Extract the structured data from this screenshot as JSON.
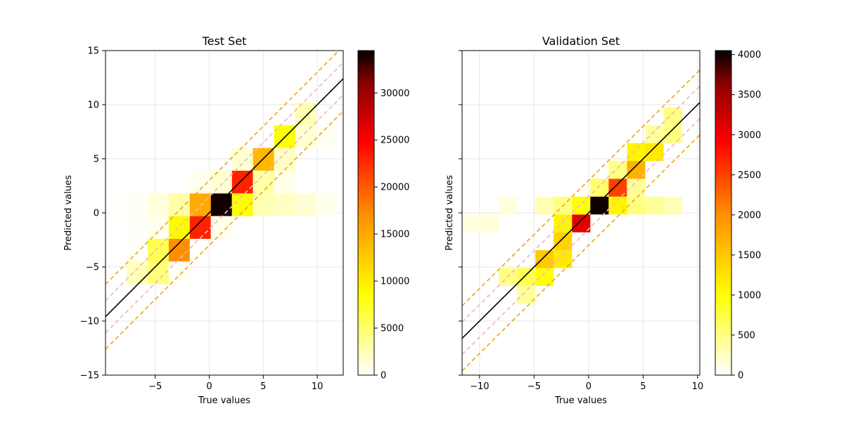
{
  "chart_data": [
    {
      "type": "heatmap",
      "title": "Test Set",
      "xlabel": "True values",
      "ylabel": "Predicted values",
      "xlim": [
        -9.6,
        12.4
      ],
      "ylim": [
        -15,
        15
      ],
      "x_ticks": [
        -5,
        0,
        5,
        10
      ],
      "y_ticks": [
        -15,
        -10,
        -5,
        0,
        5,
        10,
        15
      ],
      "grid": true,
      "bin_size": [
        1.95,
        2.1
      ],
      "x_bin_start": -9.6,
      "y_bin_start": -15,
      "bins": [
        {
          "x": -7.65,
          "y": -6.6,
          "v": 2500
        },
        {
          "x": -7.65,
          "y": -4.5,
          "v": 300
        },
        {
          "x": -7.65,
          "y": -0.3,
          "v": 300
        },
        {
          "x": -7.65,
          "y": -2.4,
          "v": 200
        },
        {
          "x": -9.6,
          "y": -0.3,
          "v": 150
        },
        {
          "x": -5.7,
          "y": -6.6,
          "v": 4500
        },
        {
          "x": -5.7,
          "y": -4.5,
          "v": 6000
        },
        {
          "x": -5.7,
          "y": -2.4,
          "v": 600
        },
        {
          "x": -5.7,
          "y": -0.3,
          "v": 1200
        },
        {
          "x": -3.75,
          "y": -4.5,
          "v": 17000
        },
        {
          "x": -3.75,
          "y": -2.4,
          "v": 9000
        },
        {
          "x": -3.75,
          "y": -0.3,
          "v": 3000
        },
        {
          "x": -3.75,
          "y": -6.6,
          "v": 400
        },
        {
          "x": -1.8,
          "y": -2.4,
          "v": 23000
        },
        {
          "x": -1.8,
          "y": -0.3,
          "v": 15000
        },
        {
          "x": -1.8,
          "y": 1.8,
          "v": 600
        },
        {
          "x": 0.15,
          "y": -0.3,
          "v": 34000
        },
        {
          "x": 0.15,
          "y": 1.8,
          "v": 1500
        },
        {
          "x": 0.15,
          "y": -2.4,
          "v": 600
        },
        {
          "x": 2.1,
          "y": -0.3,
          "v": 8500
        },
        {
          "x": 2.1,
          "y": 1.8,
          "v": 23000
        },
        {
          "x": 2.1,
          "y": 3.9,
          "v": 1500
        },
        {
          "x": 4.05,
          "y": 3.9,
          "v": 14000
        },
        {
          "x": 4.05,
          "y": 1.8,
          "v": 3000
        },
        {
          "x": 4.05,
          "y": -0.3,
          "v": 2500
        },
        {
          "x": 6.0,
          "y": 6.0,
          "v": 8500
        },
        {
          "x": 6.0,
          "y": 3.9,
          "v": 2000
        },
        {
          "x": 6.0,
          "y": 1.8,
          "v": 700
        },
        {
          "x": 6.0,
          "y": -0.3,
          "v": 2000
        },
        {
          "x": 7.95,
          "y": 8.1,
          "v": 2500
        },
        {
          "x": 7.95,
          "y": 6.0,
          "v": 1500
        },
        {
          "x": 7.95,
          "y": -0.3,
          "v": 1500
        },
        {
          "x": 9.9,
          "y": 6.0,
          "v": 400
        },
        {
          "x": 9.9,
          "y": -0.3,
          "v": 600
        }
      ],
      "lines": [
        {
          "kind": "identity",
          "offset": 0,
          "color": "#000000",
          "dash": false
        },
        {
          "kind": "band",
          "offset": 1.5,
          "color": "#f4b6c2",
          "dash": true
        },
        {
          "kind": "band",
          "offset": -1.5,
          "color": "#f4b6c2",
          "dash": true
        },
        {
          "kind": "band",
          "offset": 3,
          "color": "#f0a818",
          "dash": true
        },
        {
          "kind": "band",
          "offset": -3,
          "color": "#f0a818",
          "dash": true
        }
      ],
      "colorbar": {
        "min": 0,
        "max": 34500,
        "ticks": [
          0,
          5000,
          10000,
          15000,
          20000,
          25000,
          30000
        ]
      }
    },
    {
      "type": "heatmap",
      "title": "Validation Set",
      "xlabel": "True values",
      "ylabel": "Predicted values",
      "xlim": [
        -11.6,
        10.2
      ],
      "ylim": [
        -15,
        15
      ],
      "x_ticks": [
        -10,
        -5,
        0,
        5,
        10
      ],
      "y_ticks": [
        -15,
        -10,
        -5,
        0,
        5,
        10,
        15
      ],
      "grid": true,
      "bin_size": [
        1.68,
        1.65
      ],
      "x_bin_start": -11.6,
      "y_bin_start": -15,
      "bins": [
        {
          "x": -11.6,
          "y": -1.8,
          "v": 120
        },
        {
          "x": -9.92,
          "y": -1.8,
          "v": 150
        },
        {
          "x": -8.24,
          "y": -0.15,
          "v": 150
        },
        {
          "x": -8.24,
          "y": -6.75,
          "v": 500
        },
        {
          "x": -6.56,
          "y": -8.4,
          "v": 400
        },
        {
          "x": -6.56,
          "y": -6.75,
          "v": 700
        },
        {
          "x": -4.88,
          "y": -6.75,
          "v": 1000
        },
        {
          "x": -4.88,
          "y": -5.1,
          "v": 1500
        },
        {
          "x": -4.88,
          "y": -0.15,
          "v": 300
        },
        {
          "x": -3.2,
          "y": -5.1,
          "v": 1200
        },
        {
          "x": -3.2,
          "y": -3.45,
          "v": 1400
        },
        {
          "x": -3.2,
          "y": -1.8,
          "v": 1100
        },
        {
          "x": -3.2,
          "y": -0.15,
          "v": 500
        },
        {
          "x": -1.52,
          "y": -1.8,
          "v": 3100
        },
        {
          "x": -1.52,
          "y": -0.15,
          "v": 1000
        },
        {
          "x": 0.16,
          "y": -0.15,
          "v": 4000
        },
        {
          "x": 0.16,
          "y": 1.5,
          "v": 600
        },
        {
          "x": 1.84,
          "y": 1.5,
          "v": 2500
        },
        {
          "x": 1.84,
          "y": -0.15,
          "v": 1100
        },
        {
          "x": 1.84,
          "y": 3.15,
          "v": 500
        },
        {
          "x": 3.52,
          "y": 3.15,
          "v": 1700
        },
        {
          "x": 3.52,
          "y": 4.8,
          "v": 1100
        },
        {
          "x": 3.52,
          "y": -0.15,
          "v": 500
        },
        {
          "x": 3.52,
          "y": 1.5,
          "v": 400
        },
        {
          "x": 5.2,
          "y": 4.8,
          "v": 1200
        },
        {
          "x": 5.2,
          "y": 6.45,
          "v": 400
        },
        {
          "x": 5.2,
          "y": -0.15,
          "v": 400
        },
        {
          "x": 6.88,
          "y": 6.45,
          "v": 500
        },
        {
          "x": 6.88,
          "y": 8.1,
          "v": 500
        },
        {
          "x": 6.88,
          "y": -0.15,
          "v": 300
        }
      ],
      "lines": [
        {
          "kind": "identity",
          "offset": 0,
          "color": "#000000",
          "dash": false
        },
        {
          "kind": "band",
          "offset": 1.5,
          "color": "#f4b6c2",
          "dash": true
        },
        {
          "kind": "band",
          "offset": -1.5,
          "color": "#f4b6c2",
          "dash": true
        },
        {
          "kind": "band",
          "offset": 3,
          "color": "#f0a818",
          "dash": true
        },
        {
          "kind": "band",
          "offset": -3,
          "color": "#f0a818",
          "dash": true
        }
      ],
      "colorbar": {
        "min": 0,
        "max": 4050,
        "ticks": [
          0,
          500,
          1000,
          1500,
          2000,
          2500,
          3000,
          3500,
          4000
        ]
      }
    }
  ]
}
